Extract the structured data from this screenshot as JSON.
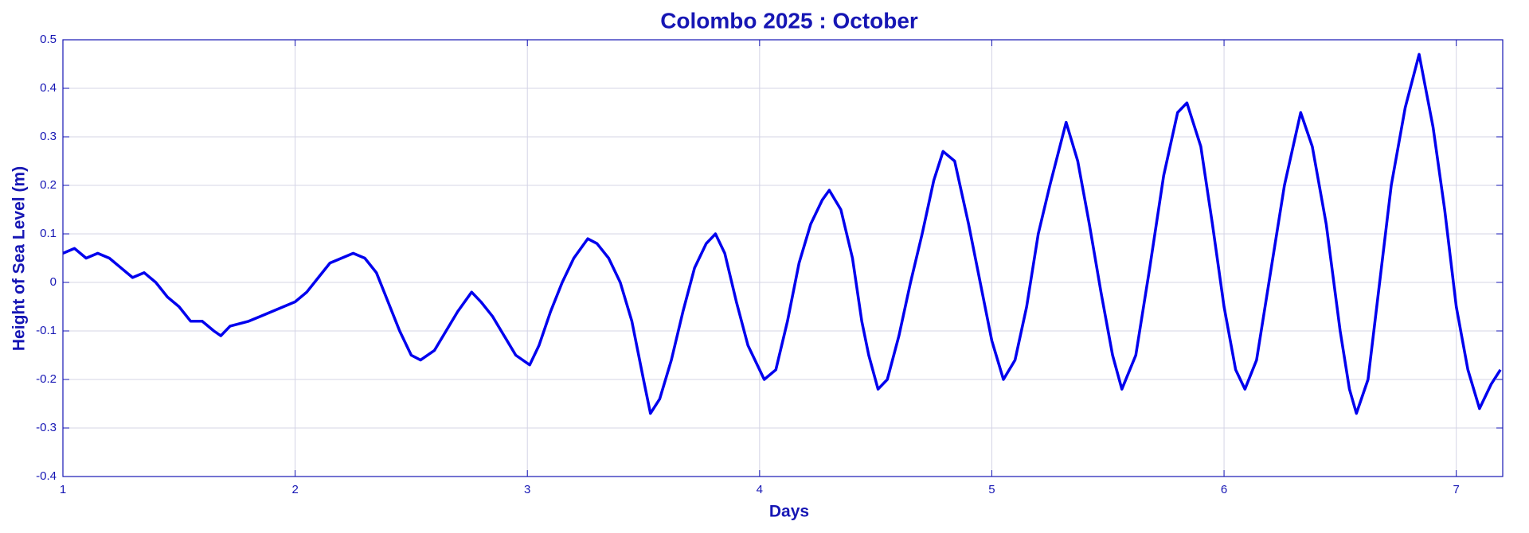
{
  "chart_data": {
    "type": "line",
    "title": "Colombo 2025 : October",
    "x_label": "Days",
    "y_label": "Height of Sea Level (m)",
    "x": [
      1.0,
      1.05,
      1.1,
      1.15,
      1.2,
      1.25,
      1.3,
      1.35,
      1.4,
      1.45,
      1.5,
      1.55,
      1.6,
      1.65,
      1.68,
      1.72,
      1.8,
      1.85,
      1.9,
      1.95,
      2.0,
      2.05,
      2.1,
      2.15,
      2.2,
      2.25,
      2.3,
      2.35,
      2.4,
      2.45,
      2.5,
      2.54,
      2.6,
      2.65,
      2.7,
      2.76,
      2.8,
      2.85,
      2.9,
      2.95,
      3.01,
      3.05,
      3.1,
      3.15,
      3.2,
      3.26,
      3.3,
      3.35,
      3.4,
      3.45,
      3.5,
      3.53,
      3.57,
      3.62,
      3.67,
      3.72,
      3.77,
      3.81,
      3.85,
      3.9,
      3.95,
      4.02,
      4.07,
      4.12,
      4.17,
      4.22,
      4.27,
      4.3,
      4.35,
      4.4,
      4.44,
      4.47,
      4.51,
      4.55,
      4.6,
      4.65,
      4.7,
      4.75,
      4.79,
      4.84,
      4.9,
      4.95,
      5.0,
      5.05,
      5.1,
      5.15,
      5.2,
      5.25,
      5.32,
      5.37,
      5.42,
      5.47,
      5.52,
      5.56,
      5.62,
      5.68,
      5.74,
      5.8,
      5.84,
      5.9,
      5.95,
      6.0,
      6.05,
      6.09,
      6.14,
      6.2,
      6.26,
      6.33,
      6.38,
      6.44,
      6.5,
      6.54,
      6.57,
      6.62,
      6.67,
      6.72,
      6.78,
      6.84,
      6.9,
      6.95,
      7.0,
      7.05,
      7.1,
      7.15,
      7.19
    ],
    "values": [
      0.06,
      0.07,
      0.05,
      0.06,
      0.05,
      0.03,
      0.01,
      0.02,
      0.0,
      -0.03,
      -0.05,
      -0.08,
      -0.08,
      -0.1,
      -0.11,
      -0.09,
      -0.08,
      -0.07,
      -0.06,
      -0.05,
      -0.04,
      -0.02,
      0.01,
      0.04,
      0.05,
      0.06,
      0.05,
      0.02,
      -0.04,
      -0.1,
      -0.15,
      -0.16,
      -0.14,
      -0.1,
      -0.06,
      -0.02,
      -0.04,
      -0.07,
      -0.11,
      -0.15,
      -0.17,
      -0.13,
      -0.06,
      0.0,
      0.05,
      0.09,
      0.08,
      0.05,
      0.0,
      -0.08,
      -0.2,
      -0.27,
      -0.24,
      -0.16,
      -0.06,
      0.03,
      0.08,
      0.1,
      0.06,
      -0.04,
      -0.13,
      -0.2,
      -0.18,
      -0.08,
      0.04,
      0.12,
      0.17,
      0.19,
      0.15,
      0.05,
      -0.08,
      -0.15,
      -0.22,
      -0.2,
      -0.11,
      0.0,
      0.1,
      0.21,
      0.27,
      0.25,
      0.12,
      0.0,
      -0.12,
      -0.2,
      -0.16,
      -0.05,
      0.1,
      0.2,
      0.33,
      0.25,
      0.12,
      -0.02,
      -0.15,
      -0.22,
      -0.15,
      0.03,
      0.22,
      0.35,
      0.37,
      0.28,
      0.12,
      -0.05,
      -0.18,
      -0.22,
      -0.16,
      0.02,
      0.2,
      0.35,
      0.28,
      0.12,
      -0.1,
      -0.22,
      -0.27,
      -0.2,
      0.0,
      0.2,
      0.36,
      0.47,
      0.32,
      0.15,
      -0.05,
      -0.18,
      -0.26,
      -0.21,
      -0.18
    ],
    "color": "#0000ee",
    "xlim": [
      1,
      7.2
    ],
    "xticks": [
      1,
      2,
      3,
      4,
      5,
      6,
      7
    ],
    "ylim": [
      -0.4,
      0.5
    ],
    "yticks": [
      -0.4,
      -0.3,
      -0.2,
      -0.1,
      0,
      0.1,
      0.2,
      0.3,
      0.4,
      0.5
    ],
    "grid": true
  }
}
